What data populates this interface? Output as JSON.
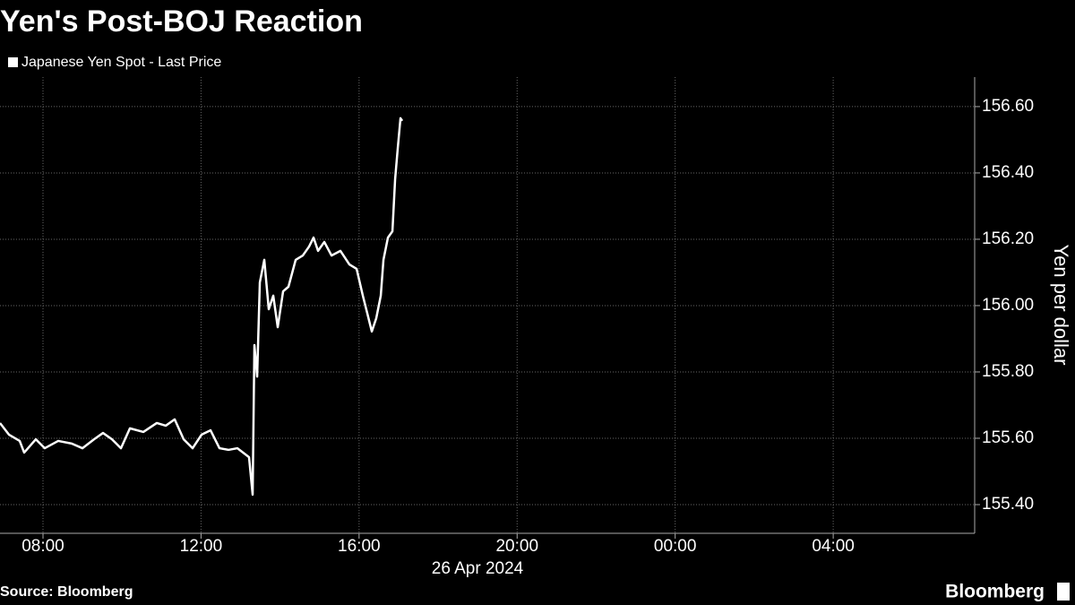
{
  "chart_data": {
    "type": "line",
    "title": "Yen's Post-BOJ Reaction",
    "y_axis_label": "Yen per dollar",
    "x_axis_sublabel": "26 Apr 2024",
    "source": "Source: Bloomberg",
    "logo": "Bloomberg",
    "grid": true,
    "x": [
      6.912,
      7.138,
      7.41,
      7.524,
      7.819,
      8.045,
      8.385,
      8.726,
      8.998,
      9.293,
      9.519,
      9.746,
      9.973,
      10.2,
      10.54,
      10.88,
      11.107,
      11.333,
      11.56,
      11.787,
      12.014,
      12.24,
      12.467,
      12.694,
      12.921,
      13.215,
      13.306,
      13.351,
      13.42,
      13.488,
      13.601,
      13.714,
      13.828,
      13.941,
      14.077,
      14.213,
      14.395,
      14.576,
      14.735,
      14.848,
      14.961,
      15.12,
      15.302,
      15.528,
      15.755,
      15.937,
      16.095,
      16.209,
      16.322,
      16.435,
      16.549,
      16.617,
      16.73,
      16.844,
      16.912,
      16.98,
      17.048,
      17.093
    ],
    "series": [
      {
        "name": "Japanese Yen Spot - Last Price",
        "color": "#ffffff",
        "values": [
          155.646,
          155.611,
          155.592,
          155.557,
          155.597,
          155.57,
          155.592,
          155.584,
          155.57,
          155.597,
          155.616,
          155.597,
          155.57,
          155.63,
          155.619,
          155.646,
          155.638,
          155.657,
          155.597,
          155.57,
          155.611,
          155.624,
          155.57,
          155.565,
          155.57,
          155.543,
          155.43,
          155.881,
          155.786,
          156.07,
          156.138,
          155.989,
          156.03,
          155.935,
          156.043,
          156.057,
          156.138,
          156.151,
          156.178,
          156.205,
          156.165,
          156.192,
          156.151,
          156.165,
          156.124,
          156.111,
          156.03,
          155.976,
          155.922,
          155.962,
          156.03,
          156.138,
          156.205,
          156.224,
          156.381,
          156.476,
          156.565,
          156.557
        ]
      }
    ],
    "xlim": [
      6.912,
      31.58
    ],
    "xticks": [
      {
        "value": 8,
        "label": "08:00"
      },
      {
        "value": 12,
        "label": "12:00"
      },
      {
        "value": 16,
        "label": "16:00"
      },
      {
        "value": 20,
        "label": "20:00"
      },
      {
        "value": 24,
        "label": "00:00"
      },
      {
        "value": 28,
        "label": "04:00"
      }
    ],
    "ylim": [
      155.3135,
      156.689
    ],
    "yticks": [
      {
        "value": 155.4,
        "label": "155.40"
      },
      {
        "value": 155.6,
        "label": "155.60"
      },
      {
        "value": 155.8,
        "label": "155.80"
      },
      {
        "value": 156.0,
        "label": "156.00"
      },
      {
        "value": 156.2,
        "label": "156.20"
      },
      {
        "value": 156.4,
        "label": "156.40"
      },
      {
        "value": 156.6,
        "label": "156.60"
      }
    ]
  }
}
